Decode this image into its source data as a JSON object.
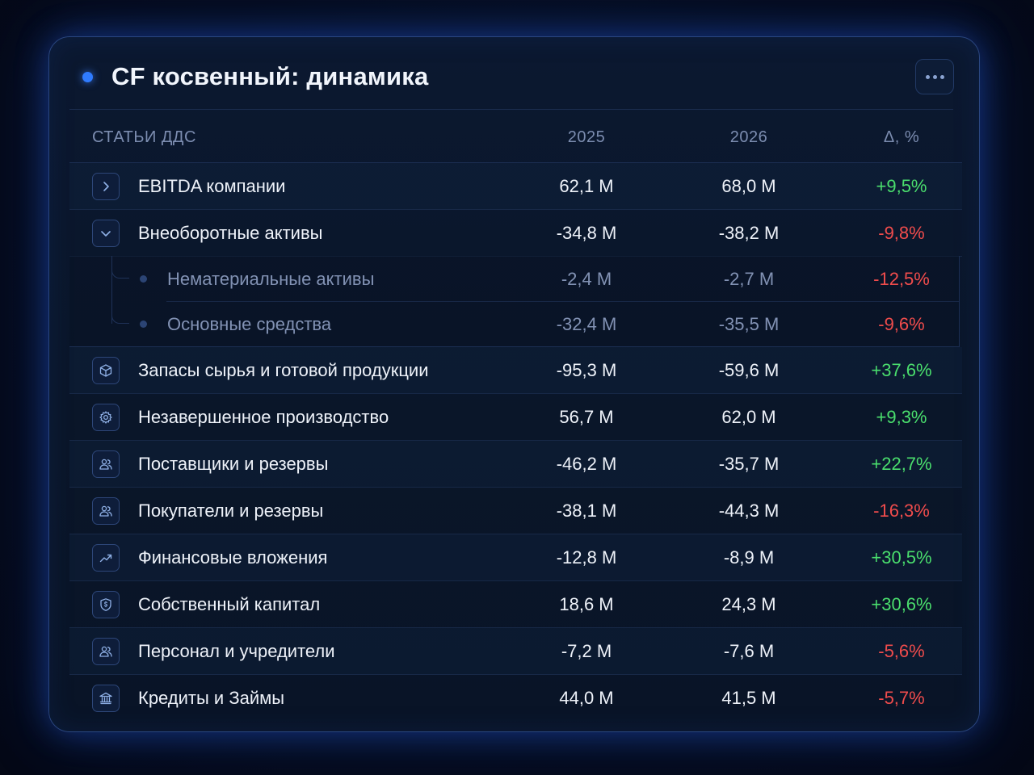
{
  "card": {
    "title": "CF косвенный: динамика",
    "more_icon": "ellipsis-icon"
  },
  "table": {
    "columns": [
      "СТАТЬИ ДДС",
      "2025",
      "2026",
      "Δ, %"
    ],
    "rows": [
      {
        "icon": "chevron-right-icon",
        "label": "EBITDA компании",
        "v2025": "62,1 M",
        "v2026": "68,0 M",
        "delta": "+9,5%",
        "trend": "up"
      },
      {
        "icon": "chevron-down-icon",
        "label": "Внеоборотные активы",
        "v2025": "-34,8 M",
        "v2026": "-38,2 M",
        "delta": "-9,8%",
        "trend": "down"
      },
      {
        "icon": "box-icon",
        "label": "Запасы сырья и готовой продукции",
        "v2025": "-95,3 M",
        "v2026": "-59,6 M",
        "delta": "+37,6%",
        "trend": "up"
      },
      {
        "icon": "gear-icon",
        "label": "Незавершенное производство",
        "v2025": "56,7 M",
        "v2026": "62,0 M",
        "delta": "+9,3%",
        "trend": "up"
      },
      {
        "icon": "users-icon",
        "label": "Поставщики и резервы",
        "v2025": "-46,2 M",
        "v2026": "-35,7 M",
        "delta": "+22,7%",
        "trend": "up"
      },
      {
        "icon": "users-icon",
        "label": "Покупатели и резервы",
        "v2025": "-38,1 M",
        "v2026": "-44,3 M",
        "delta": "-16,3%",
        "trend": "down"
      },
      {
        "icon": "trend-up-icon",
        "label": "Финансовые вложения",
        "v2025": "-12,8 M",
        "v2026": "-8,9 M",
        "delta": "+30,5%",
        "trend": "up"
      },
      {
        "icon": "shield-dollar-icon",
        "label": "Собственный капитал",
        "v2025": "18,6 M",
        "v2026": "24,3 M",
        "delta": "+30,6%",
        "trend": "up"
      },
      {
        "icon": "users-icon",
        "label": "Персонал и учредители",
        "v2025": "-7,2 M",
        "v2026": "-7,6 M",
        "delta": "-5,6%",
        "trend": "down"
      },
      {
        "icon": "bank-icon",
        "label": "Кредиты и Займы",
        "v2025": "44,0 M",
        "v2026": "41,5 M",
        "delta": "-5,7%",
        "trend": "down"
      }
    ],
    "subrows": [
      {
        "label": "Нематериальные активы",
        "v2025": "-2,4 M",
        "v2026": "-2,7 M",
        "delta": "-12,5%",
        "trend": "down"
      },
      {
        "label": "Основные средства",
        "v2025": "-32,4 M",
        "v2026": "-35,5 M",
        "delta": "-9,6%",
        "trend": "down"
      }
    ]
  },
  "colors": {
    "accent": "#2f7bff",
    "positive": "#4ade6d",
    "negative": "#f04c4c"
  }
}
